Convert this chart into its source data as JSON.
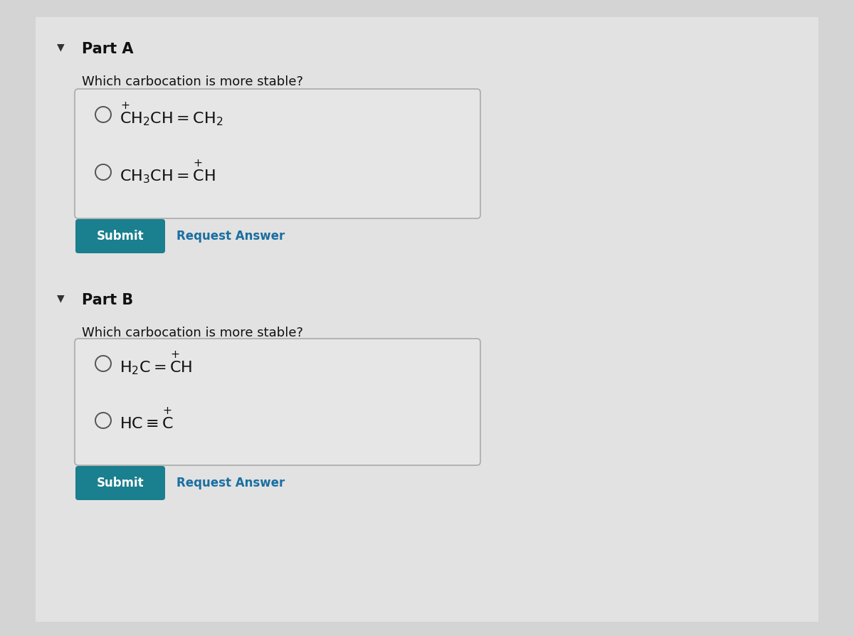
{
  "bg_color": "#d4d4d4",
  "box_border_color": "#aaaaaa",
  "submit_btn_color": "#1a7f8e",
  "submit_text_color": "#ffffff",
  "request_answer_color": "#1a6fa0",
  "part_a_label": "Part A",
  "part_b_label": "Part B",
  "question_text": "Which carbocation is more stable?",
  "submit_label": "Submit",
  "request_label": "Request Answer",
  "triangle_color": "#333333",
  "text_color": "#111111",
  "font_size_part": 15,
  "font_size_question": 13,
  "font_size_option": 16,
  "font_size_btn": 12
}
